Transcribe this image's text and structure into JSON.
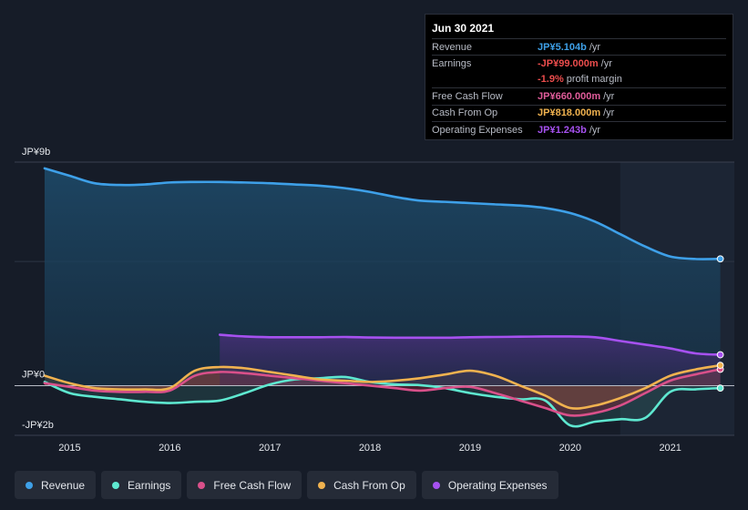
{
  "tooltip": {
    "date": "Jun 30 2021",
    "rows": [
      {
        "label": "Revenue",
        "value": "JP¥5.104b",
        "suffix": "/yr",
        "color": "#3ea0e8"
      },
      {
        "label": "Earnings",
        "value": "-JP¥99.000m",
        "suffix": "/yr",
        "color": "#ec4d4d"
      },
      {
        "label": "",
        "value": "-1.9%",
        "suffix": "profit margin",
        "color": "#ec4d4d"
      },
      {
        "label": "Free Cash Flow",
        "value": "JP¥660.000m",
        "suffix": "/yr",
        "color": "#e05c9a"
      },
      {
        "label": "Cash From Op",
        "value": "JP¥818.000m",
        "suffix": "/yr",
        "color": "#f0b24f"
      },
      {
        "label": "Operating Expenses",
        "value": "JP¥1.243b",
        "suffix": "/yr",
        "color": "#a651f0"
      }
    ]
  },
  "legend": [
    {
      "label": "Revenue",
      "color": "#3ea0e8"
    },
    {
      "label": "Earnings",
      "color": "#5ee8d0"
    },
    {
      "label": "Free Cash Flow",
      "color": "#d9508a"
    },
    {
      "label": "Cash From Op",
      "color": "#f0b24f"
    },
    {
      "label": "Operating Expenses",
      "color": "#a651f0"
    }
  ],
  "chart_data": {
    "type": "area",
    "title": "",
    "xlabel": "",
    "ylabel": "",
    "unit": "JP¥ billions",
    "x_ticks": [
      "2015",
      "2016",
      "2017",
      "2018",
      "2019",
      "2020",
      "2021"
    ],
    "x_tick_values": [
      2015,
      2016,
      2017,
      2018,
      2019,
      2020,
      2021
    ],
    "y_ticks": [
      {
        "value": 9,
        "label": "JP¥9b"
      },
      {
        "value": 0,
        "label": "JP¥0"
      },
      {
        "value": -2,
        "label": "-JP¥2b"
      }
    ],
    "xlim": [
      2014.45,
      2021.64
    ],
    "ylim": [
      -2.0,
      9.0
    ],
    "forecast_shade_start": 2020.5,
    "series": [
      {
        "name": "Revenue",
        "color": "#3ea0e8",
        "x": [
          2014.75,
          2015.0,
          2015.25,
          2015.5,
          2015.75,
          2016.0,
          2016.25,
          2016.5,
          2016.75,
          2017.0,
          2017.25,
          2017.5,
          2017.75,
          2018.0,
          2018.25,
          2018.5,
          2018.75,
          2019.0,
          2019.25,
          2019.5,
          2019.75,
          2020.0,
          2020.25,
          2020.5,
          2020.75,
          2021.0,
          2021.25,
          2021.5
        ],
        "values": [
          8.75,
          8.45,
          8.15,
          8.08,
          8.1,
          8.18,
          8.2,
          8.2,
          8.18,
          8.15,
          8.1,
          8.05,
          7.95,
          7.8,
          7.6,
          7.45,
          7.4,
          7.35,
          7.3,
          7.25,
          7.15,
          6.95,
          6.6,
          6.1,
          5.6,
          5.2,
          5.1,
          5.104
        ]
      },
      {
        "name": "Earnings",
        "color": "#5ee8d0",
        "x": [
          2014.75,
          2015.0,
          2015.25,
          2015.5,
          2015.75,
          2016.0,
          2016.25,
          2016.5,
          2016.75,
          2017.0,
          2017.25,
          2017.5,
          2017.75,
          2018.0,
          2018.25,
          2018.5,
          2018.75,
          2019.0,
          2019.25,
          2019.5,
          2019.75,
          2020.0,
          2020.25,
          2020.5,
          2020.75,
          2021.0,
          2021.25,
          2021.5
        ],
        "values": [
          0.15,
          -0.3,
          -0.45,
          -0.55,
          -0.65,
          -0.7,
          -0.65,
          -0.6,
          -0.3,
          0.05,
          0.25,
          0.3,
          0.35,
          0.15,
          0.05,
          0.02,
          -0.1,
          -0.3,
          -0.45,
          -0.55,
          -0.6,
          -1.6,
          -1.45,
          -1.35,
          -1.3,
          -0.25,
          -0.15,
          -0.099
        ]
      },
      {
        "name": "Free Cash Flow",
        "color": "#d9508a",
        "x": [
          2014.75,
          2015.0,
          2015.25,
          2015.5,
          2015.75,
          2016.0,
          2016.25,
          2016.5,
          2016.75,
          2017.0,
          2017.25,
          2017.5,
          2017.75,
          2018.0,
          2018.25,
          2018.5,
          2018.75,
          2019.0,
          2019.25,
          2019.5,
          2019.75,
          2020.0,
          2020.25,
          2020.5,
          2020.75,
          2021.0,
          2021.25,
          2021.5
        ],
        "values": [
          0.1,
          -0.05,
          -0.2,
          -0.25,
          -0.25,
          -0.2,
          0.4,
          0.55,
          0.5,
          0.4,
          0.3,
          0.2,
          0.1,
          0.0,
          -0.1,
          -0.2,
          -0.1,
          -0.05,
          -0.3,
          -0.6,
          -0.9,
          -1.2,
          -1.1,
          -0.8,
          -0.3,
          0.2,
          0.45,
          0.66
        ]
      },
      {
        "name": "Cash From Op",
        "color": "#f0b24f",
        "x": [
          2014.75,
          2015.0,
          2015.25,
          2015.5,
          2015.75,
          2016.0,
          2016.25,
          2016.5,
          2016.75,
          2017.0,
          2017.25,
          2017.5,
          2017.75,
          2018.0,
          2018.25,
          2018.5,
          2018.75,
          2019.0,
          2019.25,
          2019.5,
          2019.75,
          2020.0,
          2020.25,
          2020.5,
          2020.75,
          2021.0,
          2021.25,
          2021.5
        ],
        "values": [
          0.4,
          0.1,
          -0.1,
          -0.15,
          -0.15,
          -0.1,
          0.6,
          0.75,
          0.7,
          0.55,
          0.4,
          0.25,
          0.2,
          0.15,
          0.2,
          0.3,
          0.45,
          0.6,
          0.4,
          0.0,
          -0.4,
          -0.9,
          -0.8,
          -0.5,
          -0.1,
          0.4,
          0.65,
          0.818
        ]
      },
      {
        "name": "Operating Expenses",
        "color": "#a651f0",
        "x": [
          2016.5,
          2016.75,
          2017.0,
          2017.25,
          2017.5,
          2017.75,
          2018.0,
          2018.25,
          2018.5,
          2018.75,
          2019.0,
          2019.25,
          2019.5,
          2019.75,
          2020.0,
          2020.25,
          2020.5,
          2020.75,
          2021.0,
          2021.25,
          2021.5
        ],
        "values": [
          2.05,
          1.98,
          1.95,
          1.95,
          1.95,
          1.96,
          1.94,
          1.93,
          1.93,
          1.93,
          1.95,
          1.96,
          1.97,
          1.98,
          1.98,
          1.95,
          1.8,
          1.65,
          1.5,
          1.3,
          1.243
        ]
      }
    ]
  }
}
